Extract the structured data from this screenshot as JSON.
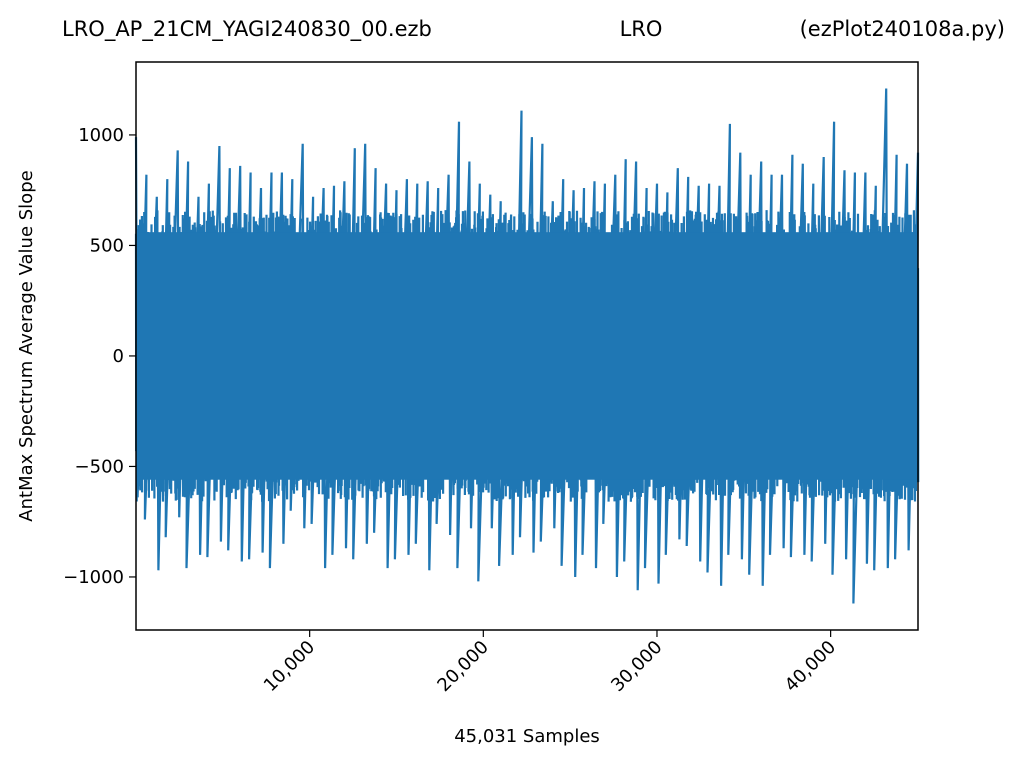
{
  "chart_data": {
    "type": "line",
    "title_left": "LRO_AP_21CM_YAGI240830_00.ezb",
    "title_center": "LRO",
    "title_right": "(ezPlot240108a.py)",
    "xlabel": "45,031 Samples",
    "ylabel": "AntMax Spectrum Average Value Slope",
    "xlim": [
      0,
      45031
    ],
    "ylim": [
      -1240,
      1330
    ],
    "xticks": [
      10000,
      20000,
      30000,
      40000
    ],
    "xtick_labels": [
      "10,000",
      "20,000",
      "30,000",
      "40,000"
    ],
    "yticks": [
      -1000,
      -500,
      0,
      500,
      1000
    ],
    "ytick_labels": [
      "−1000",
      "−500",
      "0",
      "500",
      "1000"
    ],
    "grid": false,
    "line_color": "#1f77b4",
    "series": [
      {
        "x": [
          0,
          600,
          1200,
          1800,
          2400,
          3000,
          3600,
          4200,
          4800,
          5400,
          6000,
          6600,
          7200,
          7800,
          8400,
          9000,
          9600,
          10200,
          10800,
          11400,
          12000,
          12600,
          13200,
          13800,
          14400,
          15000,
          15600,
          16200,
          16800,
          17400,
          18000,
          18600,
          19200,
          19800,
          20400,
          21000,
          21600,
          22200,
          22800,
          23400,
          24000,
          24600,
          25200,
          25800,
          26400,
          27000,
          27600,
          28200,
          28800,
          29400,
          30000,
          30600,
          31200,
          31800,
          32400,
          33000,
          33600,
          34200,
          34800,
          35400,
          36000,
          36600,
          37200,
          37800,
          38400,
          39000,
          39600,
          40200,
          40800,
          41400,
          42000,
          42600,
          43200,
          43800,
          44400,
          45031
        ],
        "max": [
          990,
          820,
          720,
          800,
          930,
          880,
          720,
          780,
          950,
          850,
          860,
          830,
          760,
          830,
          830,
          800,
          960,
          720,
          760,
          770,
          790,
          940,
          960,
          850,
          780,
          750,
          800,
          780,
          790,
          760,
          820,
          1060,
          880,
          780,
          730,
          700,
          640,
          1110,
          990,
          960,
          700,
          800,
          750,
          760,
          790,
          780,
          820,
          890,
          880,
          760,
          780,
          740,
          850,
          810,
          770,
          780,
          770,
          1050,
          920,
          820,
          880,
          820,
          820,
          910,
          870,
          780,
          900,
          1060,
          840,
          830,
          830,
          770,
          1210,
          910,
          870,
          920
        ],
        "min": [
          -640,
          -740,
          -970,
          -820,
          -730,
          -960,
          -900,
          -910,
          -840,
          -880,
          -930,
          -920,
          -890,
          -960,
          -850,
          -700,
          -780,
          -760,
          -960,
          -900,
          -870,
          -920,
          -850,
          -800,
          -960,
          -920,
          -900,
          -850,
          -970,
          -760,
          -810,
          -960,
          -780,
          -1020,
          -780,
          -950,
          -900,
          -820,
          -890,
          -840,
          -780,
          -950,
          -1000,
          -900,
          -960,
          -760,
          -1000,
          -930,
          -1060,
          -960,
          -1030,
          -900,
          -830,
          -860,
          -930,
          -980,
          -1040,
          -900,
          -920,
          -990,
          -1040,
          -900,
          -870,
          -910,
          -900,
          -930,
          -850,
          -990,
          -920,
          -1120,
          -940,
          -970,
          -960,
          -920,
          -880,
          -540
        ]
      }
    ]
  }
}
